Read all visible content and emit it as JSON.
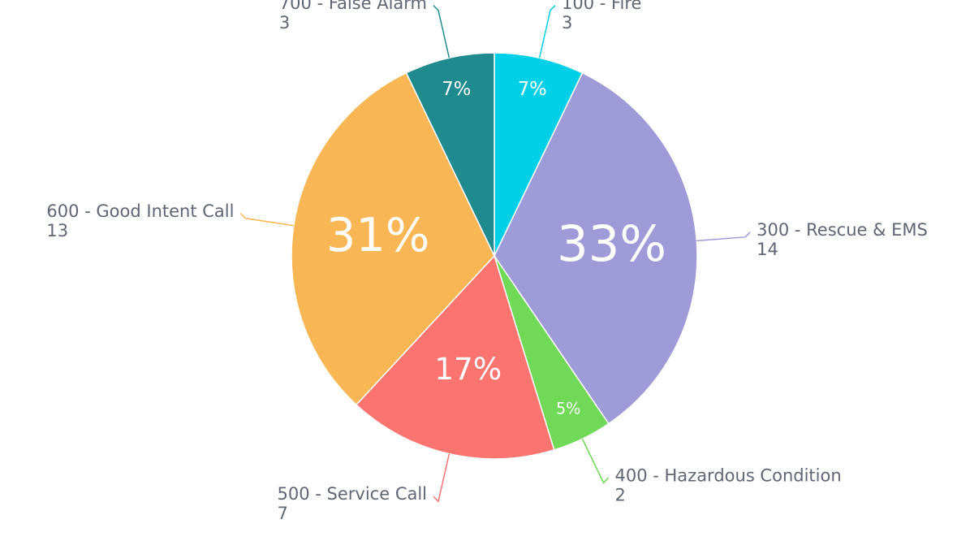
{
  "chart_data": {
    "type": "pie",
    "categories": [
      "100 - Fire",
      "300 - Rescue & EMS",
      "400 - Hazardous Condition",
      "500 - Service Call",
      "600 - Good Intent Call",
      "700 - False Alarm"
    ],
    "values": [
      3,
      14,
      2,
      7,
      13,
      3
    ],
    "slice_labels": [
      "7%",
      "33%",
      "5%",
      "17%",
      "31%",
      "7%"
    ],
    "colors": [
      "#00cfe8",
      "#9e9bd8",
      "#70d957",
      "#fc7470",
      "#f9b655",
      "#208b8f"
    ]
  }
}
